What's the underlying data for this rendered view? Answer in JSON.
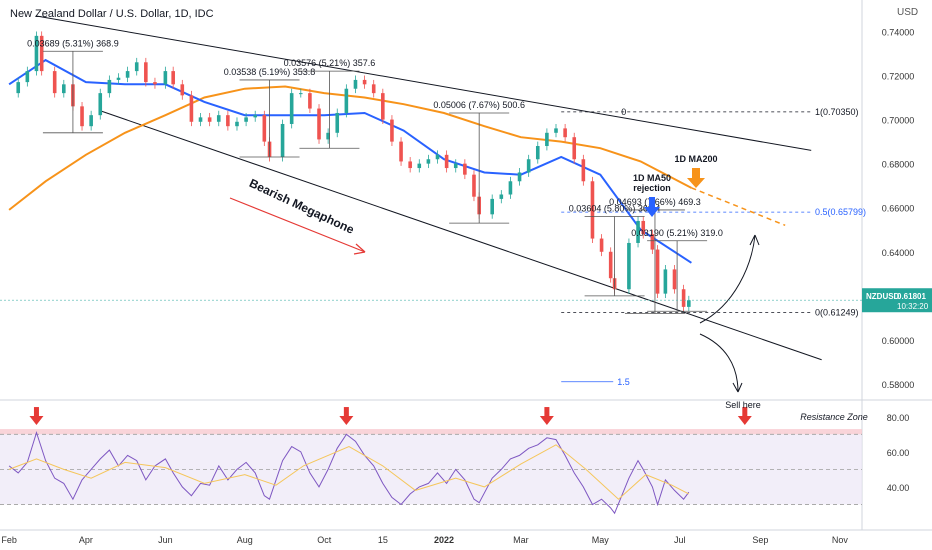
{
  "title": "New Zealand Dollar / U.S. Dollar, 1D, IDC",
  "currency_label": "USD",
  "chart_data": {
    "type": "line",
    "series_name": "NZDUSD",
    "ohlc_samples": [
      [
        "2021-02-01",
        0.712
      ],
      [
        "2021-02-08",
        0.717
      ],
      [
        "2021-02-15",
        0.722
      ],
      [
        "2021-02-22",
        0.738
      ],
      [
        "2021-02-26",
        0.722
      ],
      [
        "2021-03-08",
        0.712
      ],
      [
        "2021-03-15",
        0.716
      ],
      [
        "2021-03-22",
        0.706
      ],
      [
        "2021-03-29",
        0.697
      ],
      [
        "2021-04-05",
        0.702
      ],
      [
        "2021-04-12",
        0.712
      ],
      [
        "2021-04-19",
        0.718
      ],
      [
        "2021-04-26",
        0.719
      ],
      [
        "2021-05-03",
        0.722
      ],
      [
        "2021-05-10",
        0.726
      ],
      [
        "2021-05-17",
        0.717
      ],
      [
        "2021-05-24",
        0.716
      ],
      [
        "2021-06-01",
        0.722
      ],
      [
        "2021-06-07",
        0.716
      ],
      [
        "2021-06-14",
        0.711
      ],
      [
        "2021-06-21",
        0.699
      ],
      [
        "2021-06-28",
        0.701
      ],
      [
        "2021-07-05",
        0.699
      ],
      [
        "2021-07-12",
        0.702
      ],
      [
        "2021-07-19",
        0.697
      ],
      [
        "2021-07-26",
        0.699
      ],
      [
        "2021-08-02",
        0.701
      ],
      [
        "2021-08-09",
        0.702
      ],
      [
        "2021-08-16",
        0.69
      ],
      [
        "2021-08-20",
        0.683
      ],
      [
        "2021-08-30",
        0.698
      ],
      [
        "2021-09-06",
        0.712
      ],
      [
        "2021-09-13",
        0.712
      ],
      [
        "2021-09-20",
        0.705
      ],
      [
        "2021-09-27",
        0.691
      ],
      [
        "2021-10-04",
        0.694
      ],
      [
        "2021-10-11",
        0.703
      ],
      [
        "2021-10-18",
        0.714
      ],
      [
        "2021-10-25",
        0.718
      ],
      [
        "2021-11-01",
        0.716
      ],
      [
        "2021-11-08",
        0.712
      ],
      [
        "2021-11-15",
        0.7
      ],
      [
        "2021-11-22",
        0.69
      ],
      [
        "2021-11-29",
        0.681
      ],
      [
        "2021-12-06",
        0.678
      ],
      [
        "2021-12-13",
        0.68
      ],
      [
        "2021-12-20",
        0.682
      ],
      [
        "2021-12-27",
        0.684
      ],
      [
        "2022-01-03",
        0.678
      ],
      [
        "2022-01-10",
        0.68
      ],
      [
        "2022-01-17",
        0.675
      ],
      [
        "2022-01-24",
        0.665
      ],
      [
        "2022-01-28",
        0.657
      ],
      [
        "2022-02-07",
        0.664
      ],
      [
        "2022-02-14",
        0.666
      ],
      [
        "2022-02-21",
        0.672
      ],
      [
        "2022-02-28",
        0.676
      ],
      [
        "2022-03-07",
        0.682
      ],
      [
        "2022-03-14",
        0.688
      ],
      [
        "2022-03-21",
        0.694
      ],
      [
        "2022-03-28",
        0.696
      ],
      [
        "2022-04-04",
        0.692
      ],
      [
        "2022-04-11",
        0.682
      ],
      [
        "2022-04-18",
        0.672
      ],
      [
        "2022-04-25",
        0.646
      ],
      [
        "2022-05-02",
        0.64
      ],
      [
        "2022-05-09",
        0.628
      ],
      [
        "2022-05-12",
        0.623
      ],
      [
        "2022-05-23",
        0.644
      ],
      [
        "2022-05-30",
        0.654
      ],
      [
        "2022-06-03",
        0.648
      ],
      [
        "2022-06-10",
        0.641
      ],
      [
        "2022-06-14",
        0.621
      ],
      [
        "2022-06-20",
        0.632
      ],
      [
        "2022-06-27",
        0.623
      ],
      [
        "2022-07-04",
        0.615
      ],
      [
        "2022-07-08",
        0.618
      ]
    ],
    "ma50_name": "1D MA50",
    "ma200_name": "1D MA200",
    "ma50": [
      [
        "2021-02-01",
        0.716
      ],
      [
        "2021-03-01",
        0.727
      ],
      [
        "2021-04-01",
        0.717
      ],
      [
        "2021-05-01",
        0.716
      ],
      [
        "2021-06-01",
        0.716
      ],
      [
        "2021-07-01",
        0.708
      ],
      [
        "2021-08-01",
        0.702
      ],
      [
        "2021-09-01",
        0.702
      ],
      [
        "2021-10-01",
        0.702
      ],
      [
        "2021-11-01",
        0.703
      ],
      [
        "2021-12-01",
        0.695
      ],
      [
        "2022-01-01",
        0.682
      ],
      [
        "2022-02-01",
        0.676
      ],
      [
        "2022-03-01",
        0.675
      ],
      [
        "2022-04-01",
        0.683
      ],
      [
        "2022-05-01",
        0.675
      ],
      [
        "2022-06-01",
        0.65
      ],
      [
        "2022-07-10",
        0.635
      ]
    ],
    "ma200": [
      [
        "2021-02-01",
        0.659
      ],
      [
        "2021-03-01",
        0.672
      ],
      [
        "2021-04-01",
        0.684
      ],
      [
        "2021-05-01",
        0.694
      ],
      [
        "2021-06-01",
        0.702
      ],
      [
        "2021-07-01",
        0.71
      ],
      [
        "2021-08-01",
        0.714
      ],
      [
        "2021-09-01",
        0.715
      ],
      [
        "2021-10-01",
        0.712
      ],
      [
        "2021-11-01",
        0.71
      ],
      [
        "2021-12-01",
        0.707
      ],
      [
        "2022-01-01",
        0.703
      ],
      [
        "2022-02-01",
        0.697
      ],
      [
        "2022-03-01",
        0.692
      ],
      [
        "2022-04-01",
        0.69
      ],
      [
        "2022-05-01",
        0.687
      ],
      [
        "2022-06-01",
        0.681
      ],
      [
        "2022-07-10",
        0.669
      ]
    ],
    "ma200_projection": [
      [
        "2022-07-10",
        0.669
      ],
      [
        "2022-09-20",
        0.652
      ]
    ],
    "megaphone_upper": [
      [
        "2021-02-22",
        0.747
      ],
      [
        "2022-10-10",
        0.686
      ]
    ],
    "megaphone_lower": [
      [
        "2021-04-12",
        0.704
      ],
      [
        "2022-10-18",
        0.591
      ]
    ],
    "fib_levels": [
      {
        "label": "1(0.70350)",
        "value": 0.7035
      },
      {
        "label": "0.5(0.65799)",
        "value": 0.65799
      },
      {
        "label": "0(0.61249)",
        "value": 0.61249
      }
    ],
    "fib_start_label": "0",
    "fib_ext_label": "1.5",
    "fib_ext_value": 0.581,
    "price_measures": [
      {
        "label": "0.03689 (5.31%) 368.9",
        "from": [
          "2021-03-22",
          0.694
        ],
        "to": [
          "2021-03-22",
          0.731
        ]
      },
      {
        "label": "0.03538 (5.19%) 353.8",
        "from": [
          "2021-08-20",
          0.683
        ],
        "to": [
          "2021-08-20",
          0.718
        ]
      },
      {
        "label": "0.03576 (5.21%) 357.6",
        "from": [
          "2021-10-05",
          0.687
        ],
        "to": [
          "2021-10-05",
          0.722
        ]
      },
      {
        "label": "0.05006 (7.67%) 500.6",
        "from": [
          "2022-01-28",
          0.653
        ],
        "to": [
          "2022-01-28",
          0.703
        ]
      },
      {
        "label": "0.03604 (5.80%) 360.4",
        "from": [
          "2022-05-12",
          0.62
        ],
        "to": [
          "2022-05-12",
          0.656
        ]
      },
      {
        "label": "0.04693 (7.66%) 469.3",
        "from": [
          "2022-06-12",
          0.612
        ],
        "to": [
          "2022-06-12",
          0.659
        ]
      },
      {
        "label": "0.03190 (5.21%) 319.0",
        "from": [
          "2022-06-29",
          0.613
        ],
        "to": [
          "2022-06-29",
          0.645
        ]
      }
    ],
    "annotations": {
      "megaphone": "Bearish Megaphone",
      "ma200": "1D MA200",
      "ma50_rejection": "1D MA50\nrejection",
      "sell": "Sell here",
      "resistance": "Resistance Zone"
    },
    "y_axis": {
      "ticks": [
        0.74,
        0.72,
        0.7,
        0.68,
        0.66,
        0.64,
        0.62,
        0.6,
        0.58
      ],
      "labels": [
        "0.74000",
        "0.72000",
        "0.70000",
        "0.68000",
        "0.66000",
        "0.64000",
        "0.62000",
        "0.60000",
        "0.58000"
      ],
      "range": [
        0.575,
        0.752
      ]
    },
    "x_axis": {
      "range": [
        "2021-01-25",
        "2022-11-18"
      ],
      "ticks": [
        {
          "label": "Feb",
          "date": "2021-02-01"
        },
        {
          "label": "Apr",
          "date": "2021-04-01"
        },
        {
          "label": "Jun",
          "date": "2021-06-01"
        },
        {
          "label": "Aug",
          "date": "2021-08-01"
        },
        {
          "label": "Oct",
          "date": "2021-10-01"
        },
        {
          "label": "15",
          "date": "2021-11-15"
        },
        {
          "label": "2022",
          "date": "2022-01-01"
        },
        {
          "label": "Mar",
          "date": "2022-03-01"
        },
        {
          "label": "May",
          "date": "2022-05-01"
        },
        {
          "label": "Jul",
          "date": "2022-07-01"
        },
        {
          "label": "Sep",
          "date": "2022-09-01"
        },
        {
          "label": "Nov",
          "date": "2022-11-01"
        }
      ]
    },
    "last_price": {
      "symbol": "NZDUSD",
      "value": "0.61801",
      "countdown": "10:32:20",
      "num": 0.61801
    },
    "rsi": {
      "range": [
        20,
        85
      ],
      "ticks": [
        80,
        60,
        40
      ],
      "tick_labels": [
        "80.00",
        "60.00",
        "40.00"
      ],
      "band": [
        30,
        70
      ],
      "resistance_zone": [
        70,
        73
      ],
      "values": [
        [
          "2021-02-01",
          52
        ],
        [
          "2021-02-08",
          48
        ],
        [
          "2021-02-15",
          54
        ],
        [
          "2021-02-22",
          71
        ],
        [
          "2021-03-01",
          55
        ],
        [
          "2021-03-08",
          45
        ],
        [
          "2021-03-15",
          42
        ],
        [
          "2021-03-22",
          33
        ],
        [
          "2021-03-29",
          44
        ],
        [
          "2021-04-05",
          50
        ],
        [
          "2021-04-12",
          56
        ],
        [
          "2021-04-19",
          61
        ],
        [
          "2021-04-26",
          52
        ],
        [
          "2021-05-03",
          58
        ],
        [
          "2021-05-10",
          55
        ],
        [
          "2021-05-17",
          44
        ],
        [
          "2021-05-24",
          52
        ],
        [
          "2021-06-01",
          56
        ],
        [
          "2021-06-07",
          48
        ],
        [
          "2021-06-14",
          40
        ],
        [
          "2021-06-21",
          35
        ],
        [
          "2021-06-28",
          42
        ],
        [
          "2021-07-05",
          41
        ],
        [
          "2021-07-12",
          52
        ],
        [
          "2021-07-19",
          44
        ],
        [
          "2021-07-26",
          50
        ],
        [
          "2021-08-02",
          54
        ],
        [
          "2021-08-09",
          48
        ],
        [
          "2021-08-16",
          35
        ],
        [
          "2021-08-20",
          33
        ],
        [
          "2021-08-30",
          55
        ],
        [
          "2021-09-06",
          63
        ],
        [
          "2021-09-13",
          60
        ],
        [
          "2021-09-20",
          48
        ],
        [
          "2021-09-27",
          40
        ],
        [
          "2021-10-04",
          50
        ],
        [
          "2021-10-11",
          62
        ],
        [
          "2021-10-18",
          70
        ],
        [
          "2021-10-25",
          66
        ],
        [
          "2021-11-01",
          58
        ],
        [
          "2021-11-08",
          52
        ],
        [
          "2021-11-15",
          42
        ],
        [
          "2021-11-22",
          34
        ],
        [
          "2021-11-29",
          30
        ],
        [
          "2021-12-06",
          36
        ],
        [
          "2021-12-13",
          40
        ],
        [
          "2021-12-20",
          42
        ],
        [
          "2021-12-27",
          48
        ],
        [
          "2022-01-03",
          42
        ],
        [
          "2022-01-10",
          50
        ],
        [
          "2022-01-17",
          44
        ],
        [
          "2022-01-24",
          33
        ],
        [
          "2022-01-28",
          31
        ],
        [
          "2022-02-07",
          45
        ],
        [
          "2022-02-14",
          50
        ],
        [
          "2022-02-21",
          56
        ],
        [
          "2022-02-28",
          58
        ],
        [
          "2022-03-07",
          62
        ],
        [
          "2022-03-14",
          64
        ],
        [
          "2022-03-21",
          68
        ],
        [
          "2022-03-28",
          67
        ],
        [
          "2022-04-04",
          58
        ],
        [
          "2022-04-11",
          48
        ],
        [
          "2022-04-18",
          40
        ],
        [
          "2022-04-25",
          30
        ],
        [
          "2022-05-02",
          33
        ],
        [
          "2022-05-09",
          28
        ],
        [
          "2022-05-12",
          25
        ],
        [
          "2022-05-23",
          45
        ],
        [
          "2022-05-30",
          55
        ],
        [
          "2022-06-03",
          50
        ],
        [
          "2022-06-10",
          40
        ],
        [
          "2022-06-14",
          30
        ],
        [
          "2022-06-20",
          44
        ],
        [
          "2022-06-27",
          38
        ],
        [
          "2022-07-04",
          33
        ],
        [
          "2022-07-08",
          37
        ]
      ],
      "signal": [
        [
          "2021-02-01",
          50
        ],
        [
          "2021-02-22",
          56
        ],
        [
          "2021-03-15",
          50
        ],
        [
          "2021-04-05",
          45
        ],
        [
          "2021-05-01",
          54
        ],
        [
          "2021-06-01",
          51
        ],
        [
          "2021-07-01",
          42
        ],
        [
          "2021-08-01",
          47
        ],
        [
          "2021-08-25",
          41
        ],
        [
          "2021-09-15",
          52
        ],
        [
          "2021-10-20",
          63
        ],
        [
          "2021-11-15",
          52
        ],
        [
          "2021-12-10",
          38
        ],
        [
          "2022-01-10",
          45
        ],
        [
          "2022-02-01",
          40
        ],
        [
          "2022-03-01",
          53
        ],
        [
          "2022-03-28",
          64
        ],
        [
          "2022-04-20",
          50
        ],
        [
          "2022-05-15",
          33
        ],
        [
          "2022-06-05",
          47
        ],
        [
          "2022-06-25",
          41
        ],
        [
          "2022-07-08",
          36
        ]
      ],
      "arrows": [
        "2021-02-22",
        "2021-10-18",
        "2022-03-21",
        "2022-08-20"
      ]
    }
  }
}
